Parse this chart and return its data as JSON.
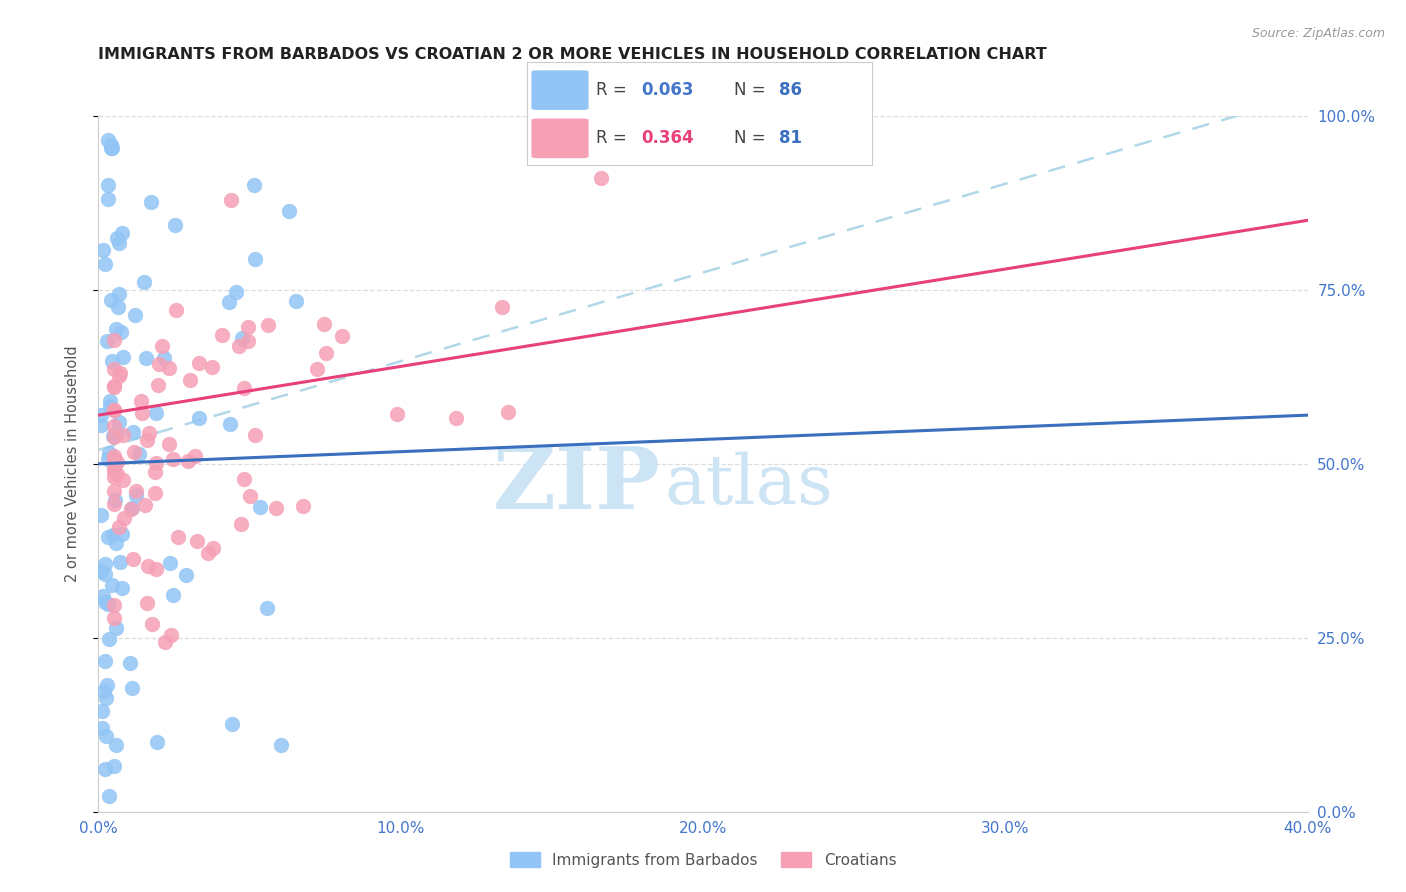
{
  "title": "IMMIGRANTS FROM BARBADOS VS CROATIAN 2 OR MORE VEHICLES IN HOUSEHOLD CORRELATION CHART",
  "source": "Source: ZipAtlas.com",
  "ylabel": "2 or more Vehicles in Household",
  "x_ticks": [
    "0.0%",
    "10.0%",
    "20.0%",
    "30.0%",
    "40.0%"
  ],
  "x_tick_vals": [
    0.0,
    0.1,
    0.2,
    0.3,
    0.4
  ],
  "y_ticks_right": [
    "100.0%",
    "75.0%",
    "50.0%",
    "25.0%",
    "0.0%"
  ],
  "y_tick_vals": [
    1.0,
    0.75,
    0.5,
    0.25,
    0.0
  ],
  "xlim": [
    0.0,
    0.4
  ],
  "ylim": [
    0.0,
    1.0
  ],
  "barbados_R": 0.063,
  "barbados_N": 86,
  "croatian_R": 0.364,
  "croatian_N": 81,
  "barbados_color": "#92c5f5",
  "barbados_edge_color": "#92c5f5",
  "barbados_line_color": "#3a6fbf",
  "croatian_color": "#f5a0b5",
  "croatian_edge_color": "#f5a0b5",
  "croatian_line_color": "#e8407a",
  "dashed_line_color": "#b0d8e8",
  "watermark_zip_color": "#cde4f5",
  "watermark_atlas_color": "#cde4f5",
  "legend_R_color_barbados": "#4477cc",
  "legend_R_color_croatian": "#e8407a",
  "legend_N_color": "#3a6fbf",
  "axis_tick_color": "#4477cc",
  "title_color": "#222222",
  "grid_color": "#dddddd",
  "legend_box_color": "#cccccc",
  "bottom_legend_label_color": "#555555"
}
